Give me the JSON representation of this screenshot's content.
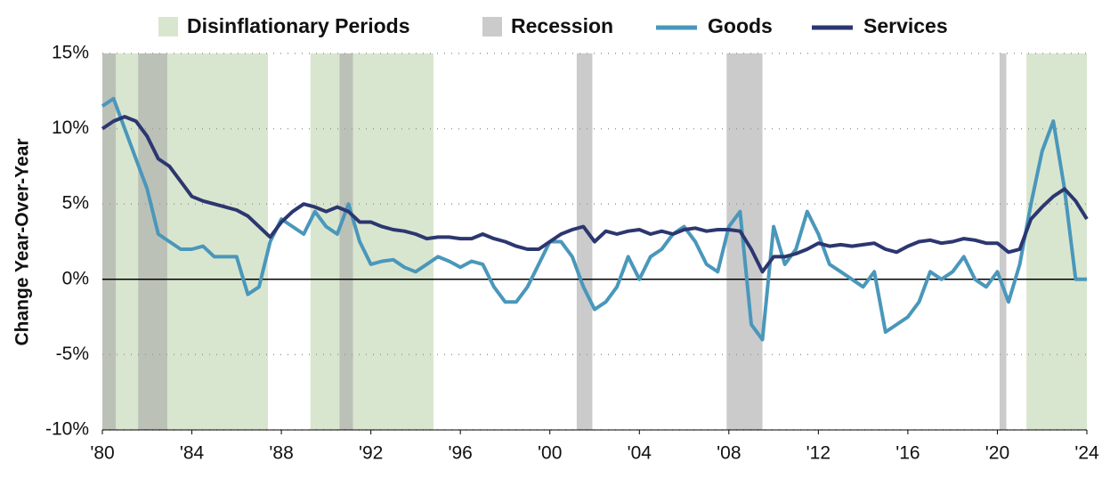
{
  "chart_data": {
    "type": "line",
    "y_label": "Change Year-Over-Year",
    "bands": [
      {
        "name": "Disinflationary Periods",
        "color": "#d9e6cf",
        "ranges": [
          [
            1980.0,
            1987.4
          ],
          [
            1989.3,
            1994.8
          ],
          [
            2021.3,
            2024.0
          ]
        ]
      },
      {
        "name": "Recession",
        "color": "#a9a9a9",
        "ranges": [
          [
            1980.0,
            1980.6
          ],
          [
            1981.6,
            1982.9
          ],
          [
            1990.6,
            1991.2
          ],
          [
            2001.2,
            2001.9
          ],
          [
            2007.9,
            2009.5
          ],
          [
            2020.1,
            2020.4
          ]
        ]
      }
    ],
    "x": [
      1980.0,
      1980.5,
      1981.0,
      1981.5,
      1982.0,
      1982.5,
      1983.0,
      1983.5,
      1984.0,
      1984.5,
      1985.0,
      1985.5,
      1986.0,
      1986.5,
      1987.0,
      1987.5,
      1988.0,
      1988.5,
      1989.0,
      1989.5,
      1990.0,
      1990.5,
      1991.0,
      1991.5,
      1992.0,
      1992.5,
      1993.0,
      1993.5,
      1994.0,
      1994.5,
      1995.0,
      1995.5,
      1996.0,
      1996.5,
      1997.0,
      1997.5,
      1998.0,
      1998.5,
      1999.0,
      1999.5,
      2000.0,
      2000.5,
      2001.0,
      2001.5,
      2002.0,
      2002.5,
      2003.0,
      2003.5,
      2004.0,
      2004.5,
      2005.0,
      2005.5,
      2006.0,
      2006.5,
      2007.0,
      2007.5,
      2008.0,
      2008.5,
      2009.0,
      2009.5,
      2010.0,
      2010.5,
      2011.0,
      2011.5,
      2012.0,
      2012.5,
      2013.0,
      2013.5,
      2014.0,
      2014.5,
      2015.0,
      2015.5,
      2016.0,
      2016.5,
      2017.0,
      2017.5,
      2018.0,
      2018.5,
      2019.0,
      2019.5,
      2020.0,
      2020.5,
      2021.0,
      2021.5,
      2022.0,
      2022.5,
      2023.0,
      2023.5,
      2024.0
    ],
    "series": [
      {
        "name": "Goods",
        "color": "#4a97bb",
        "values": [
          11.5,
          12,
          10,
          8,
          6,
          3,
          2.5,
          2,
          2,
          2.2,
          1.5,
          1.5,
          1.5,
          -1,
          -0.5,
          2.5,
          4,
          3.5,
          3,
          4.5,
          3.5,
          3,
          5,
          2.5,
          1,
          1.2,
          1.3,
          0.8,
          0.5,
          1.0,
          1.5,
          1.2,
          0.8,
          1.2,
          1.0,
          -0.5,
          -1.5,
          -1.5,
          -0.5,
          1.0,
          2.5,
          2.5,
          1.5,
          -0.5,
          -2,
          -1.5,
          -0.5,
          1.5,
          0,
          1.5,
          2,
          3,
          3.5,
          2.5,
          1,
          0.5,
          3.5,
          4.5,
          -3,
          -4,
          3.5,
          1,
          2,
          4.5,
          3,
          1,
          0.5,
          0,
          -0.5,
          0.5,
          -3.5,
          -3,
          -2.5,
          -1.5,
          0.5,
          0,
          0.5,
          1.5,
          0,
          -0.5,
          0.5,
          -1.5,
          1,
          5,
          8.5,
          10.5,
          6,
          0,
          0
        ]
      },
      {
        "name": "Services",
        "color": "#2c3770",
        "values": [
          10,
          10.5,
          10.8,
          10.5,
          9.5,
          8,
          7.5,
          6.5,
          5.5,
          5.2,
          5,
          4.8,
          4.6,
          4.2,
          3.5,
          2.8,
          3.8,
          4.5,
          5,
          4.8,
          4.5,
          4.8,
          4.5,
          3.8,
          3.8,
          3.5,
          3.3,
          3.2,
          3.0,
          2.7,
          2.8,
          2.8,
          2.7,
          2.7,
          3.0,
          2.7,
          2.5,
          2.2,
          2.0,
          2.0,
          2.5,
          3.0,
          3.3,
          3.5,
          2.5,
          3.2,
          3.0,
          3.2,
          3.3,
          3.0,
          3.2,
          3.0,
          3.3,
          3.4,
          3.2,
          3.3,
          3.3,
          3.2,
          2,
          0.5,
          1.5,
          1.5,
          1.7,
          2.0,
          2.4,
          2.2,
          2.3,
          2.2,
          2.3,
          2.4,
          2.0,
          1.8,
          2.2,
          2.5,
          2.6,
          2.4,
          2.5,
          2.7,
          2.6,
          2.4,
          2.4,
          1.8,
          2.0,
          4.0,
          4.8,
          5.5,
          6.0,
          5.2,
          4.0
        ]
      }
    ],
    "xlim": [
      1980,
      2024
    ],
    "xticks": [
      {
        "value": 1980,
        "label": "'80"
      },
      {
        "value": 1984,
        "label": "'84"
      },
      {
        "value": 1988,
        "label": "'88"
      },
      {
        "value": 1992,
        "label": "'92"
      },
      {
        "value": 1996,
        "label": "'96"
      },
      {
        "value": 2000,
        "label": "'00"
      },
      {
        "value": 2004,
        "label": "'04"
      },
      {
        "value": 2008,
        "label": "'08"
      },
      {
        "value": 2012,
        "label": "'12"
      },
      {
        "value": 2016,
        "label": "'16"
      },
      {
        "value": 2020,
        "label": "'20"
      },
      {
        "value": 2024,
        "label": "'24"
      }
    ],
    "ylim": [
      -10,
      15
    ],
    "yticks": [
      {
        "value": -10,
        "label": "-10%"
      },
      {
        "value": -5,
        "label": "-5%"
      },
      {
        "value": 0,
        "label": "0%"
      },
      {
        "value": 5,
        "label": "5%"
      },
      {
        "value": 10,
        "label": "10%"
      },
      {
        "value": 15,
        "label": "15%"
      }
    ],
    "grid": true
  }
}
